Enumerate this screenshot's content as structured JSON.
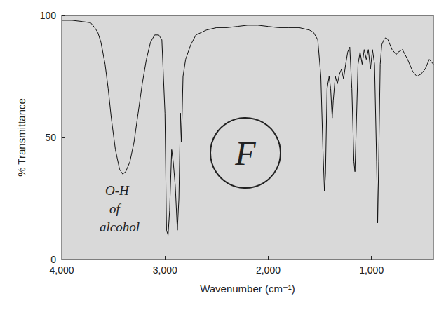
{
  "chart_data": {
    "type": "line",
    "x_label": "Wavenumber (cm⁻¹)",
    "y_label": "% Transmittance",
    "xlim": [
      4000,
      400
    ],
    "xticks": [
      4000,
      3000,
      2000,
      1000
    ],
    "ylim": [
      0,
      100
    ],
    "yticks": [
      0,
      50,
      100
    ],
    "color": "#111111",
    "grid": false,
    "annotations": [
      [
        "O-H",
        "of",
        "alcohol"
      ],
      [
        "F"
      ]
    ],
    "x": [
      4000,
      3900,
      3800,
      3720,
      3680,
      3650,
      3620,
      3580,
      3550,
      3520,
      3480,
      3440,
      3410,
      3380,
      3340,
      3300,
      3260,
      3220,
      3180,
      3140,
      3100,
      3060,
      3030,
      3000,
      2985,
      2970,
      2955,
      2935,
      2920,
      2900,
      2880,
      2865,
      2850,
      2840,
      2825,
      2800,
      2750,
      2700,
      2600,
      2500,
      2400,
      2300,
      2200,
      2100,
      2000,
      1900,
      1800,
      1700,
      1600,
      1560,
      1520,
      1490,
      1470,
      1455,
      1445,
      1430,
      1410,
      1395,
      1380,
      1370,
      1350,
      1330,
      1310,
      1290,
      1270,
      1250,
      1230,
      1210,
      1190,
      1170,
      1160,
      1150,
      1130,
      1110,
      1090,
      1070,
      1050,
      1030,
      1010,
      990,
      970,
      950,
      940,
      930,
      915,
      900,
      880,
      860,
      840,
      820,
      800,
      780,
      760,
      740,
      700,
      650,
      600,
      560,
      520,
      480,
      440,
      400
    ],
    "values": [
      98,
      98,
      97.5,
      97,
      95,
      93,
      89,
      80,
      70,
      58,
      45,
      37,
      35,
      36,
      40,
      48,
      60,
      72,
      82,
      89,
      92,
      92,
      90,
      60,
      12,
      10,
      20,
      45,
      40,
      30,
      12,
      25,
      60,
      48,
      75,
      82,
      88,
      92,
      94,
      95,
      95,
      95.5,
      96,
      96,
      95.5,
      95,
      95,
      95,
      94,
      93,
      90,
      75,
      45,
      28,
      35,
      70,
      75,
      70,
      58,
      65,
      75,
      72,
      76,
      78,
      74,
      80,
      85,
      87,
      70,
      40,
      36,
      50,
      80,
      85,
      80,
      86,
      82,
      86,
      78,
      86,
      80,
      40,
      15,
      40,
      80,
      88,
      90,
      91,
      90,
      88,
      86,
      85,
      84,
      85,
      86,
      82,
      77,
      75,
      76,
      78,
      82,
      80
    ]
  }
}
